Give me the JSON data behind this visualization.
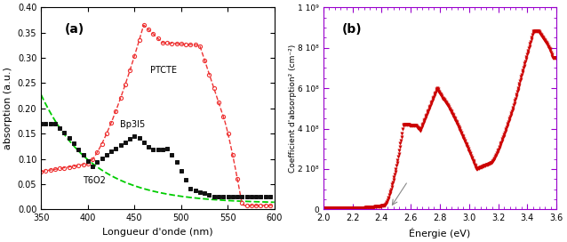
{
  "panel_a": {
    "xlabel": "Longueur d'onde (nm)",
    "ylabel": "absorption (a.u.)",
    "xlim": [
      350,
      600
    ],
    "ylim": [
      0.0,
      0.4
    ],
    "yticks": [
      0.0,
      0.05,
      0.1,
      0.15,
      0.2,
      0.25,
      0.3,
      0.35,
      0.4
    ],
    "xticks": [
      350,
      400,
      450,
      500,
      550,
      600
    ],
    "label": "(a)",
    "T6O2_color": "#00CC00",
    "Bp3I5_color": "#111111",
    "PTCTE_color": "#EE3333",
    "label_PTCTE": "PTCTE",
    "label_Bp3I5": "Bp3I5",
    "label_T6O2": "T6O2"
  },
  "panel_b": {
    "xlabel": "Énergie (eV)",
    "ylabel": "Coefficient d'absorption² (cm⁻²)",
    "xlim": [
      2.0,
      3.6
    ],
    "ylim": [
      0,
      1000000000.0
    ],
    "ytick_vals": [
      0,
      200000000,
      400000000,
      600000000,
      800000000,
      1000000000
    ],
    "ytick_labels": [
      "0",
      "2 10⁸",
      "4 10⁸",
      "6 10⁸",
      "8 10⁸",
      "1 10⁹"
    ],
    "xticks": [
      2.0,
      2.2,
      2.4,
      2.6,
      2.8,
      3.0,
      3.2,
      3.4,
      3.6
    ],
    "label": "(b)",
    "data_color": "#CC0000",
    "spine_color": "#9900CC",
    "tick_color": "#9900CC"
  }
}
